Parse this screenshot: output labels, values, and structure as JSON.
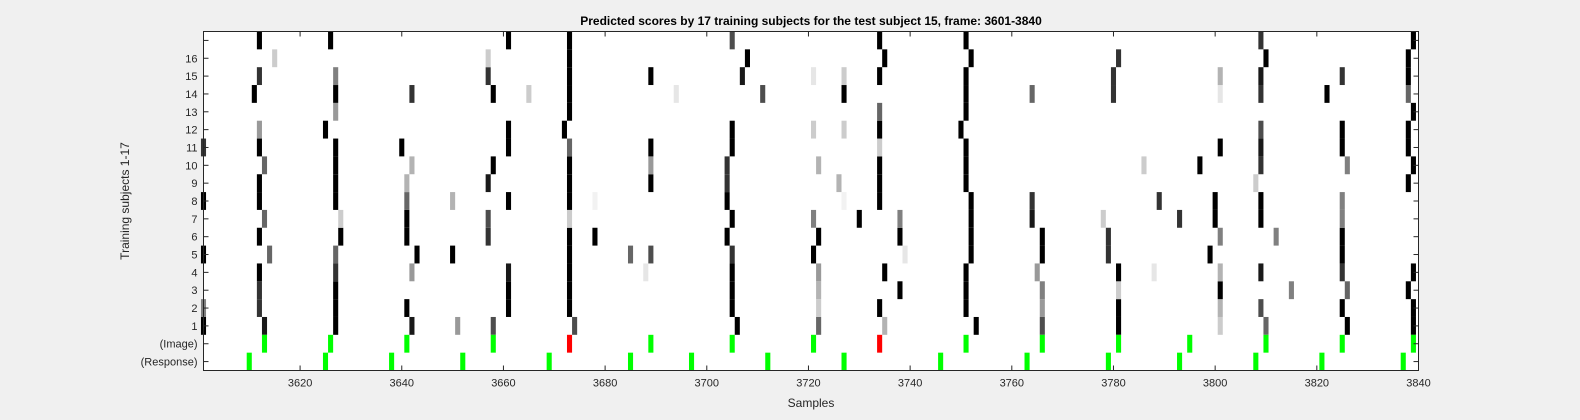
{
  "chart_data": {
    "type": "heatmap",
    "title": "Predicted scores by 17 training subjects for the test subject 15, frame: 3601-3840",
    "xlabel": "Samples",
    "ylabel": "Training subjects 1-17",
    "xlim": [
      3601,
      3840
    ],
    "xticks": [
      3620,
      3640,
      3660,
      3680,
      3700,
      3720,
      3740,
      3760,
      3780,
      3800,
      3820,
      3840
    ],
    "row_labels": [
      "(Response)",
      "(Image)",
      "1",
      "2",
      "3",
      "4",
      "5",
      "6",
      "7",
      "8",
      "9",
      "10",
      "11",
      "12",
      "13",
      "14",
      "15",
      "16",
      ""
    ],
    "grid": false,
    "colormap": "gray (1 = black, 0 = white)",
    "colors": {
      "response": "#00ff00",
      "image": "#00ff00",
      "image_highlight": "#ff0000",
      "background": "#ffffff",
      "figure": "#f0f0f0"
    },
    "response_events": [
      3610,
      3625,
      3638,
      3652,
      3669,
      3685,
      3697,
      3712,
      3727,
      3746,
      3763,
      3779,
      3793,
      3808,
      3821,
      3837
    ],
    "image_events": [
      {
        "x": 3613,
        "highlight": false
      },
      {
        "x": 3626,
        "highlight": false
      },
      {
        "x": 3641,
        "highlight": false
      },
      {
        "x": 3658,
        "highlight": false
      },
      {
        "x": 3673,
        "highlight": true
      },
      {
        "x": 3689,
        "highlight": false
      },
      {
        "x": 3705,
        "highlight": false
      },
      {
        "x": 3721,
        "highlight": false
      },
      {
        "x": 3734,
        "highlight": true
      },
      {
        "x": 3751,
        "highlight": false
      },
      {
        "x": 3766,
        "highlight": false
      },
      {
        "x": 3781,
        "highlight": false
      },
      {
        "x": 3795,
        "highlight": false
      },
      {
        "x": 3810,
        "highlight": false
      },
      {
        "x": 3825,
        "highlight": false
      },
      {
        "x": 3839,
        "highlight": false
      }
    ],
    "subject_scores": [
      {
        "subject": "1",
        "points": [
          [
            3601,
            1
          ],
          [
            3613,
            0.9
          ],
          [
            3627,
            1
          ],
          [
            3642,
            0.9
          ],
          [
            3651,
            0.4
          ],
          [
            3658,
            0.7
          ],
          [
            3674,
            0.7
          ],
          [
            3706,
            1
          ],
          [
            3722,
            0.6
          ],
          [
            3735,
            0.3
          ],
          [
            3753,
            1
          ],
          [
            3766,
            0.7
          ],
          [
            3781,
            1
          ],
          [
            3801,
            0.2
          ],
          [
            3810,
            0.6
          ],
          [
            3826,
            1
          ],
          [
            3839,
            1
          ]
        ]
      },
      {
        "subject": "2",
        "points": [
          [
            3601,
            0.5
          ],
          [
            3612,
            0.8
          ],
          [
            3627,
            1
          ],
          [
            3641,
            1
          ],
          [
            3661,
            1
          ],
          [
            3673,
            1
          ],
          [
            3705,
            1
          ],
          [
            3722,
            0.2
          ],
          [
            3734,
            1
          ],
          [
            3751,
            1
          ],
          [
            3766,
            0.4
          ],
          [
            3781,
            1
          ],
          [
            3801,
            0.3
          ],
          [
            3809,
            0.7
          ],
          [
            3825,
            1
          ],
          [
            3839,
            1
          ]
        ]
      },
      {
        "subject": "3",
        "points": [
          [
            3612,
            0.8
          ],
          [
            3627,
            1
          ],
          [
            3661,
            1
          ],
          [
            3673,
            1
          ],
          [
            3705,
            1
          ],
          [
            3722,
            0.3
          ],
          [
            3738,
            1
          ],
          [
            3751,
            1
          ],
          [
            3766,
            0.5
          ],
          [
            3781,
            0.2
          ],
          [
            3801,
            1
          ],
          [
            3815,
            0.5
          ],
          [
            3826,
            0.6
          ],
          [
            3838,
            1
          ]
        ]
      },
      {
        "subject": "4",
        "points": [
          [
            3612,
            1
          ],
          [
            3627,
            0.8
          ],
          [
            3642,
            0.4
          ],
          [
            3661,
            0.9
          ],
          [
            3673,
            1
          ],
          [
            3688,
            0.1
          ],
          [
            3705,
            1
          ],
          [
            3722,
            0.4
          ],
          [
            3735,
            1
          ],
          [
            3751,
            1
          ],
          [
            3765,
            0.4
          ],
          [
            3781,
            1
          ],
          [
            3788,
            0.1
          ],
          [
            3801,
            0.3
          ],
          [
            3809,
            0.9
          ],
          [
            3825,
            0.8
          ],
          [
            3839,
            1
          ]
        ]
      },
      {
        "subject": "5",
        "points": [
          [
            3601,
            1
          ],
          [
            3614,
            0.6
          ],
          [
            3627,
            0.6
          ],
          [
            3643,
            1
          ],
          [
            3650,
            1
          ],
          [
            3673,
            1
          ],
          [
            3685,
            0.6
          ],
          [
            3689,
            0.7
          ],
          [
            3705,
            0.8
          ],
          [
            3721,
            1
          ],
          [
            3739,
            0.1
          ],
          [
            3752,
            1
          ],
          [
            3766,
            1
          ],
          [
            3779,
            0.8
          ],
          [
            3799,
            1
          ],
          [
            3825,
            1
          ]
        ]
      },
      {
        "subject": "6",
        "points": [
          [
            3612,
            1
          ],
          [
            3628,
            1
          ],
          [
            3641,
            1
          ],
          [
            3657,
            0.8
          ],
          [
            3673,
            1
          ],
          [
            3678,
            1
          ],
          [
            3704,
            1
          ],
          [
            3722,
            1
          ],
          [
            3738,
            1
          ],
          [
            3752,
            1
          ],
          [
            3766,
            1
          ],
          [
            3779,
            0.8
          ],
          [
            3801,
            0.5
          ],
          [
            3812,
            0.5
          ],
          [
            3825,
            1
          ]
        ]
      },
      {
        "subject": "7",
        "points": [
          [
            3613,
            0.6
          ],
          [
            3628,
            0.2
          ],
          [
            3641,
            1
          ],
          [
            3657,
            0.7
          ],
          [
            3673,
            0.2
          ],
          [
            3705,
            1
          ],
          [
            3721,
            0.5
          ],
          [
            3730,
            1
          ],
          [
            3738,
            0.5
          ],
          [
            3752,
            1
          ],
          [
            3764,
            0.9
          ],
          [
            3778,
            0.2
          ],
          [
            3793,
            0.8
          ],
          [
            3800,
            1
          ],
          [
            3809,
            1
          ],
          [
            3825,
            0.5
          ]
        ]
      },
      {
        "subject": "8",
        "points": [
          [
            3601,
            1
          ],
          [
            3612,
            1
          ],
          [
            3627,
            1
          ],
          [
            3641,
            0.6
          ],
          [
            3650,
            0.3
          ],
          [
            3661,
            1
          ],
          [
            3673,
            1
          ],
          [
            3678,
            0.05
          ],
          [
            3704,
            1
          ],
          [
            3727,
            0.05
          ],
          [
            3734,
            1
          ],
          [
            3752,
            1
          ],
          [
            3764,
            0.8
          ],
          [
            3789,
            0.8
          ],
          [
            3800,
            1
          ],
          [
            3809,
            1
          ],
          [
            3825,
            0.5
          ]
        ]
      },
      {
        "subject": "9",
        "points": [
          [
            3612,
            1
          ],
          [
            3627,
            1
          ],
          [
            3641,
            0.3
          ],
          [
            3657,
            0.9
          ],
          [
            3673,
            1
          ],
          [
            3689,
            1
          ],
          [
            3704,
            0.8
          ],
          [
            3726,
            0.3
          ],
          [
            3734,
            1
          ],
          [
            3751,
            1
          ],
          [
            3808,
            0.2
          ],
          [
            3838,
            1
          ]
        ]
      },
      {
        "subject": "10",
        "points": [
          [
            3613,
            0.6
          ],
          [
            3627,
            1
          ],
          [
            3642,
            0.3
          ],
          [
            3658,
            1
          ],
          [
            3673,
            1
          ],
          [
            3689,
            0.4
          ],
          [
            3704,
            0.8
          ],
          [
            3722,
            0.3
          ],
          [
            3734,
            1
          ],
          [
            3751,
            1
          ],
          [
            3786,
            0.2
          ],
          [
            3797,
            1
          ],
          [
            3809,
            0.8
          ],
          [
            3826,
            0.5
          ],
          [
            3839,
            1
          ]
        ]
      },
      {
        "subject": "11",
        "points": [
          [
            3601,
            0.8
          ],
          [
            3612,
            1
          ],
          [
            3627,
            1
          ],
          [
            3640,
            1
          ],
          [
            3661,
            1
          ],
          [
            3673,
            0.6
          ],
          [
            3689,
            1
          ],
          [
            3705,
            1
          ],
          [
            3734,
            0.2
          ],
          [
            3751,
            1
          ],
          [
            3801,
            1
          ],
          [
            3809,
            0.9
          ],
          [
            3825,
            1
          ],
          [
            3838,
            1
          ]
        ]
      },
      {
        "subject": "12",
        "points": [
          [
            3612,
            0.4
          ],
          [
            3625,
            1
          ],
          [
            3661,
            1
          ],
          [
            3672,
            1
          ],
          [
            3705,
            1
          ],
          [
            3721,
            0.2
          ],
          [
            3727,
            0.2
          ],
          [
            3734,
            1
          ],
          [
            3750,
            1
          ],
          [
            3809,
            0.7
          ],
          [
            3825,
            1
          ],
          [
            3838,
            1
          ]
        ]
      },
      {
        "subject": "13",
        "points": [
          [
            3627,
            0.4
          ],
          [
            3673,
            1
          ],
          [
            3734,
            0.6
          ],
          [
            3751,
            1
          ],
          [
            3839,
            1
          ]
        ]
      },
      {
        "subject": "14",
        "points": [
          [
            3611,
            1
          ],
          [
            3627,
            1
          ],
          [
            3642,
            0.8
          ],
          [
            3658,
            1
          ],
          [
            3665,
            0.2
          ],
          [
            3673,
            1
          ],
          [
            3694,
            0.1
          ],
          [
            3711,
            0.7
          ],
          [
            3727,
            1
          ],
          [
            3751,
            1
          ],
          [
            3764,
            0.6
          ],
          [
            3780,
            0.8
          ],
          [
            3801,
            0.1
          ],
          [
            3809,
            0.8
          ],
          [
            3822,
            1
          ],
          [
            3838,
            0.6
          ]
        ]
      },
      {
        "subject": "15",
        "points": [
          [
            3612,
            0.8
          ],
          [
            3627,
            0.5
          ],
          [
            3657,
            0.8
          ],
          [
            3673,
            1
          ],
          [
            3689,
            1
          ],
          [
            3707,
            0.9
          ],
          [
            3721,
            0.1
          ],
          [
            3727,
            0.2
          ],
          [
            3734,
            1
          ],
          [
            3751,
            1
          ],
          [
            3780,
            0.8
          ],
          [
            3801,
            0.3
          ],
          [
            3809,
            0.9
          ],
          [
            3825,
            0.8
          ],
          [
            3838,
            1
          ]
        ]
      },
      {
        "subject": "16",
        "points": [
          [
            3615,
            0.2
          ],
          [
            3657,
            0.2
          ],
          [
            3673,
            1
          ],
          [
            3708,
            1
          ],
          [
            3735,
            1
          ],
          [
            3752,
            1
          ],
          [
            3781,
            0.8
          ],
          [
            3810,
            1
          ],
          [
            3838,
            1
          ]
        ]
      },
      {
        "subject": "17",
        "points": [
          [
            3612,
            1
          ],
          [
            3626,
            1
          ],
          [
            3661,
            1
          ],
          [
            3673,
            1
          ],
          [
            3705,
            0.7
          ],
          [
            3734,
            1
          ],
          [
            3751,
            1
          ],
          [
            3809,
            0.8
          ],
          [
            3839,
            1
          ]
        ]
      }
    ]
  }
}
